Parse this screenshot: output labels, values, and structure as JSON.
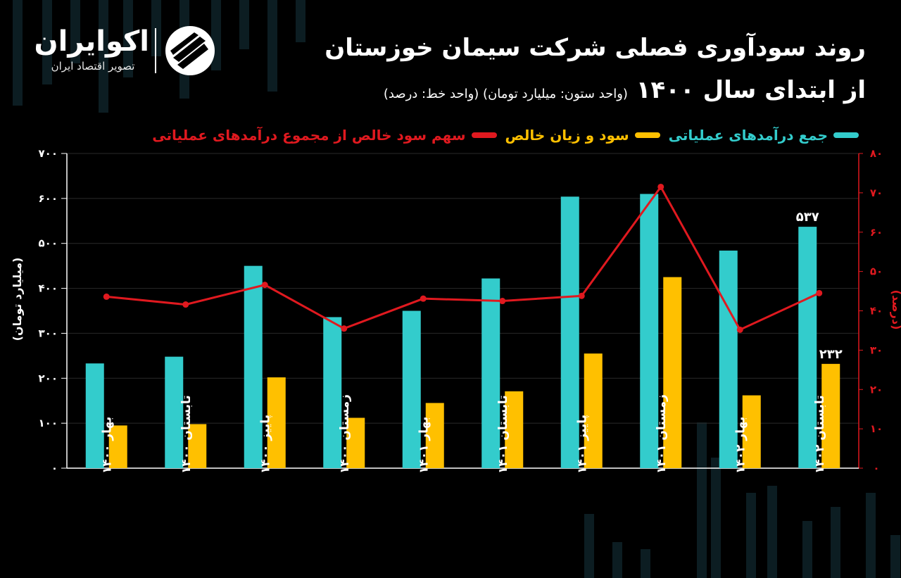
{
  "brand": {
    "name": "اکوایران",
    "tagline": "تصویر اقتصاد ایران"
  },
  "title": {
    "line1": "روند سودآوری فصلی شرکت سیمان خوزستان",
    "line2_main": "از ابتدای سال ۱۴۰۰",
    "line2_sub": "(واحد ستون: میلیارد تومان) (واحد خط: درصد)"
  },
  "legend": [
    {
      "label": "جمع درآمدهای عملیاتی",
      "color": "#33cccc"
    },
    {
      "label": "سود و زیان خالص",
      "color": "#ffc000"
    },
    {
      "label": "سهم سود خالص از مجموع درآمدهای عملیاتی",
      "color": "#e0191f"
    }
  ],
  "chart_data": {
    "type": "bar",
    "categories": [
      "بهار ۱۴۰۰",
      "تابستان ۱۴۰۰",
      "پاییز ۱۴۰۰",
      "زمستان ۱۴۰۰",
      "بهار ۱۴۰۱",
      "تابستان ۱۴۰۱",
      "پاییز ۱۴۰۱",
      "زمستان ۱۴۰۱",
      "بهار ۱۴۰۲",
      "تابستان ۱۴۰۲"
    ],
    "series": [
      {
        "name": "جمع درآمدهای عملیاتی",
        "type": "bar",
        "axis": "left",
        "color": "#33cccc",
        "values": [
          233,
          248,
          450,
          336,
          350,
          422,
          604,
          610,
          484,
          537
        ]
      },
      {
        "name": "سود و زیان خالص",
        "type": "bar",
        "axis": "left",
        "color": "#ffc000",
        "values": [
          95,
          98,
          202,
          112,
          145,
          171,
          255,
          425,
          162,
          232
        ]
      },
      {
        "name": "سهم سود خالص از مجموع درآمدهای عملیاتی",
        "type": "line",
        "axis": "right",
        "color": "#e0191f",
        "values": [
          43.6,
          41.6,
          46.6,
          35.5,
          43.1,
          42.5,
          43.8,
          71.5,
          35.2,
          44.5
        ]
      }
    ],
    "data_labels": [
      {
        "series": 0,
        "index": 9,
        "text": "۵۳۷"
      },
      {
        "series": 1,
        "index": 9,
        "text": "۲۳۲"
      }
    ],
    "ylabel": "(میلیارد تومان)",
    "y2label": "(درصد)",
    "ylim": [
      0,
      700
    ],
    "y2lim": [
      0,
      80
    ],
    "yticks": [
      "۰",
      "۱۰۰",
      "۲۰۰",
      "۳۰۰",
      "۴۰۰",
      "۵۰۰",
      "۶۰۰",
      "۷۰۰"
    ],
    "y2ticks": [
      "۰",
      "۱۰",
      "۲۰",
      "۳۰",
      "۴۰",
      "۵۰",
      "۶۰",
      "۷۰",
      "۸۰"
    ],
    "grid": true,
    "legend_position": "top"
  }
}
